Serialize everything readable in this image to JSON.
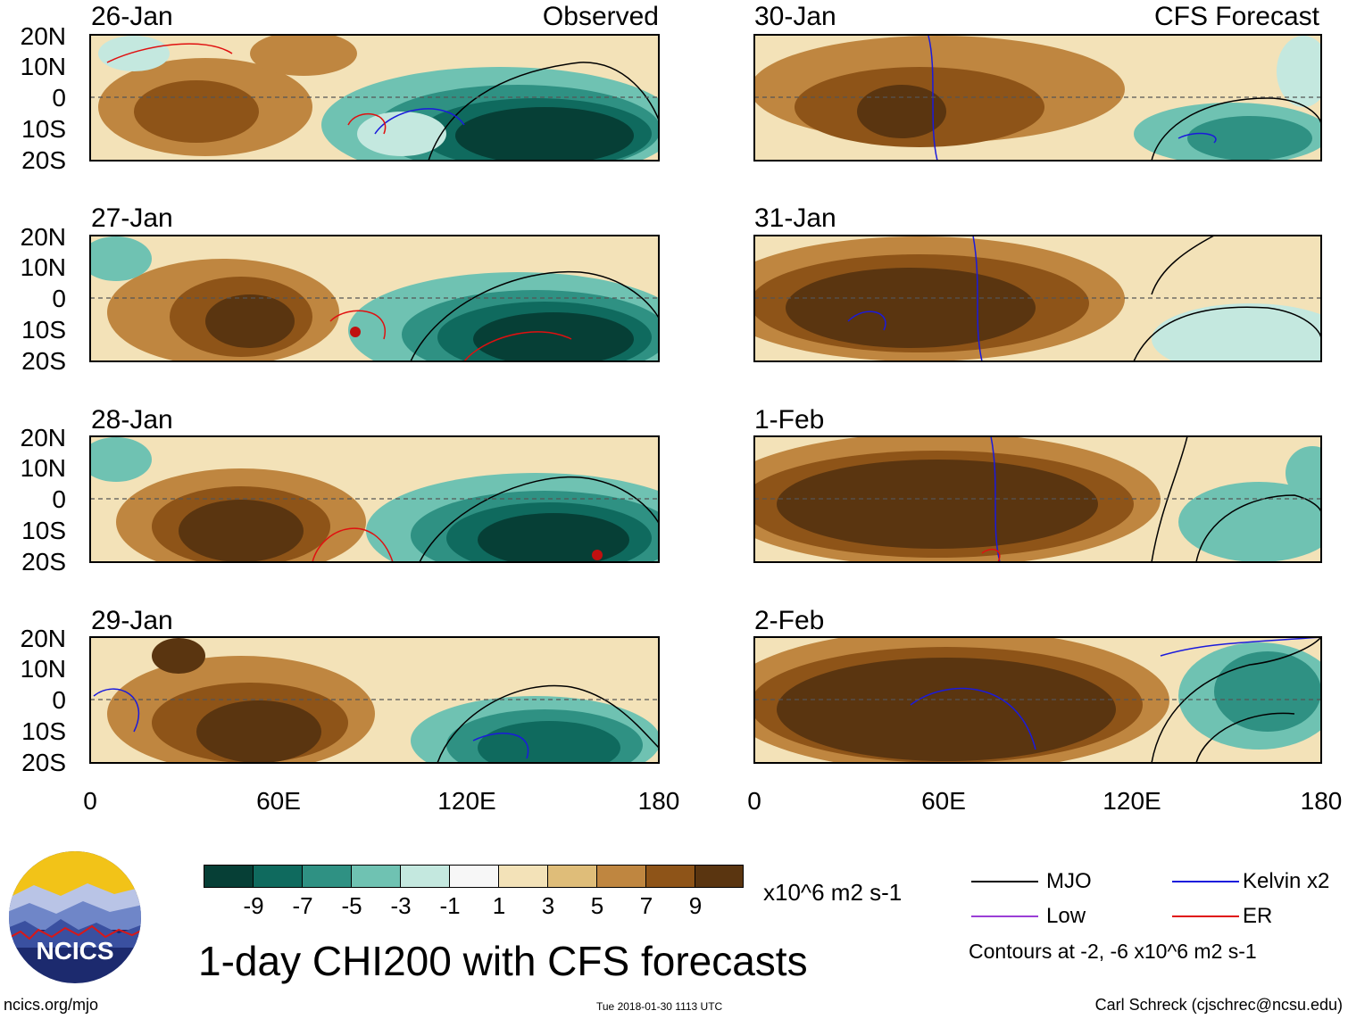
{
  "left_header": "Observed",
  "right_header": "CFS Forecast",
  "y_ticks": [
    "20N",
    "10N",
    "0",
    "10S",
    "20S"
  ],
  "x_ticks": [
    "0",
    "60E",
    "120E",
    "180"
  ],
  "panels_left": [
    {
      "date": "26-Jan"
    },
    {
      "date": "27-Jan"
    },
    {
      "date": "28-Jan"
    },
    {
      "date": "29-Jan"
    }
  ],
  "panels_right": [
    {
      "date": "30-Jan"
    },
    {
      "date": "31-Jan"
    },
    {
      "date": "1-Feb"
    },
    {
      "date": "2-Feb"
    }
  ],
  "colorbar": {
    "ticks": [
      "-9",
      "-7",
      "-5",
      "-3",
      "-1",
      "1",
      "3",
      "5",
      "7",
      "9"
    ],
    "colors": [
      "#063f36",
      "#0f6a5e",
      "#2f9183",
      "#6fc2b2",
      "#c4e8df",
      "#f7f7f7",
      "#f3e2b8",
      "#dfbd79",
      "#bf8640",
      "#8e5418",
      "#5a3510"
    ],
    "units": "x10^6 m2 s-1"
  },
  "legend": {
    "items": [
      {
        "label": "MJO",
        "color": "#000000"
      },
      {
        "label": "Kelvin x2",
        "color": "#1a1adc"
      },
      {
        "label": "Low",
        "color": "#9a3ed6"
      },
      {
        "label": "ER",
        "color": "#e01010"
      }
    ],
    "contours_note": "Contours at -2, -6 x10^6 m2 s-1"
  },
  "logo_text": "NCICS",
  "title": "1-day CHI200 with CFS forecasts",
  "footer": {
    "left": "ncics.org/mjo",
    "center": "Tue 2018-01-30 1113 UTC",
    "right": "Carl Schreck (cjschrec@ncsu.edu)"
  }
}
